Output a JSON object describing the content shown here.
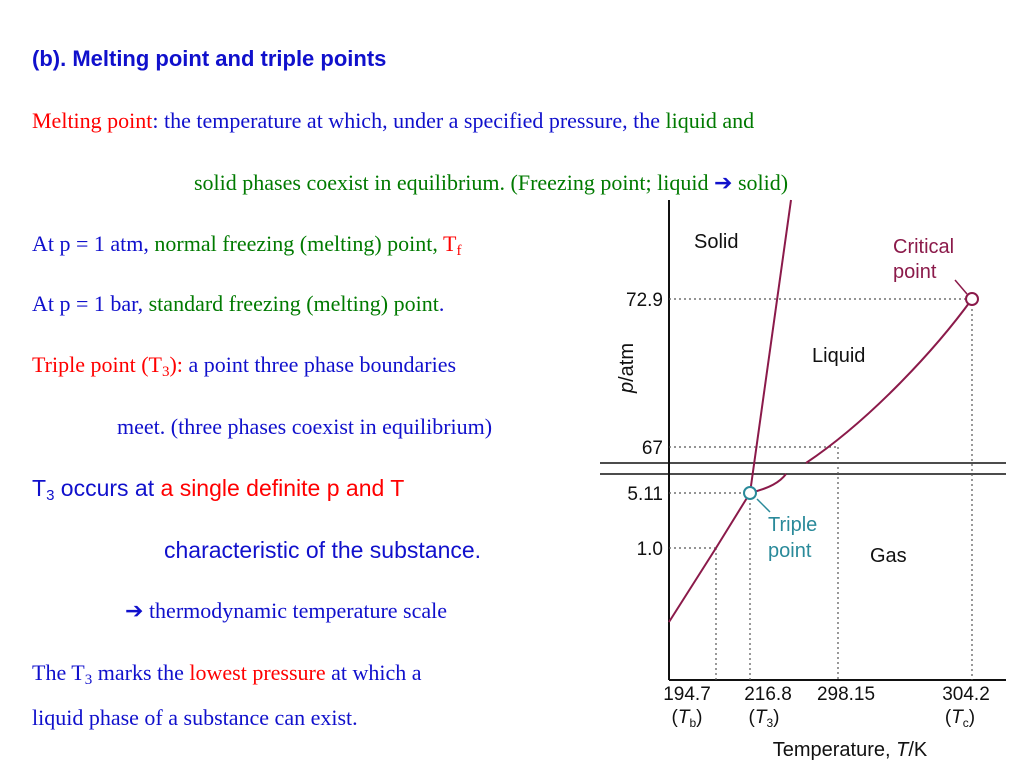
{
  "heading": "(b). Melting point and triple points",
  "definition": {
    "term": "Melting point",
    "rest": ": the temperature at which, under a specified pressure, the",
    "liquid_and": "liquid and",
    "line2": "solid phases coexist in equilibrium. (Freezing point; liquid ",
    "arrow": "➔",
    "solid": " solid)"
  },
  "atm_line": {
    "prefix": "At p = 1 atm,",
    "middle": " normal freezing (melting) point, ",
    "symbol": "T",
    "sub": "f"
  },
  "bar_line": {
    "prefix": "At p = 1 bar,",
    "middle": " standard freezing (melting) point",
    "dot": "."
  },
  "triple_def": {
    "term": "Triple point (T",
    "sub": "3",
    "close": "):",
    "rest": " a point three phase boundaries",
    "line2": "meet. (three phases coexist in equilibrium)"
  },
  "t3_occurs": {
    "t": "T",
    "sub": "3",
    "occurs": " occurs at ",
    "red": "a single definite p and T",
    "line2": "characteristic of the substance."
  },
  "scale": {
    "arrow": "➔",
    "text": " thermodynamic temperature scale"
  },
  "lowest": {
    "the": "The T",
    "sub": "3",
    "marks": " marks the ",
    "red": "lowest pressure",
    "rest": " at which a",
    "line2": "liquid phase of a substance can exist."
  },
  "diagram": {
    "regions": {
      "solid": "Solid",
      "liquid": "Liquid",
      "gas": "Gas"
    },
    "critical_point": [
      "Critical",
      "point"
    ],
    "triple_point": [
      "Triple",
      "point"
    ],
    "y_ticks": [
      "72.9",
      "67",
      "5.11",
      "1.0"
    ],
    "x_ticks": [
      "194.7",
      "216.8",
      "298.15",
      "304.2"
    ],
    "x_sublabels": [
      {
        "sym": "T",
        "sub": "b"
      },
      {
        "sym": "T",
        "sub": "3"
      },
      {
        "sym": "T",
        "sub": "c"
      }
    ],
    "ylabel_var": "p",
    "ylabel_unit": "/atm",
    "xlabel_text": "Temperature, ",
    "xlabel_var": "T",
    "xlabel_unit": "/K",
    "colors": {
      "curve": "#8b1a4a",
      "triple": "#2a8a9a",
      "axis": "#111111"
    }
  }
}
